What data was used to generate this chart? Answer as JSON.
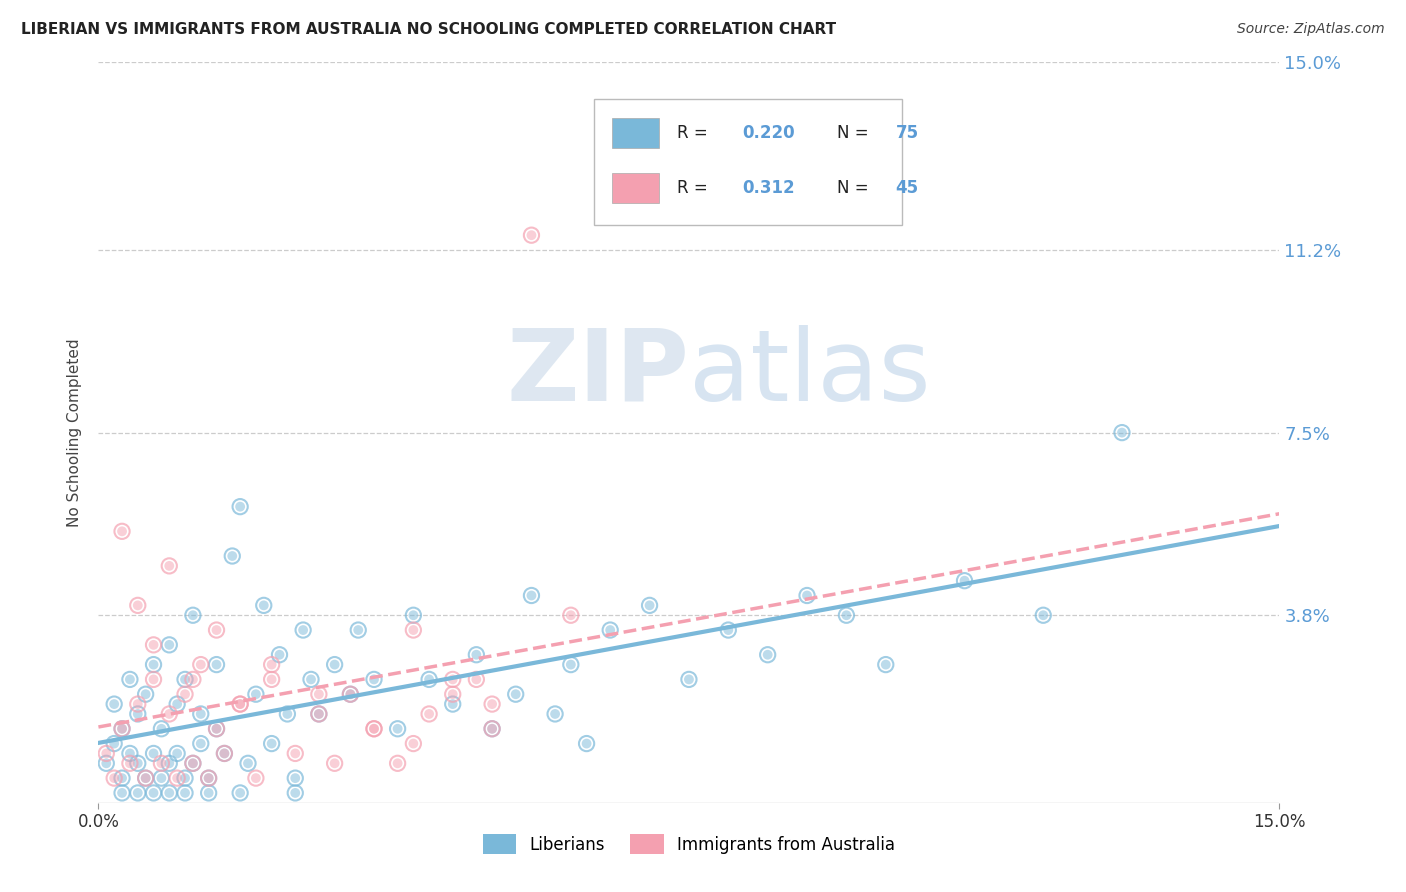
{
  "title": "LIBERIAN VS IMMIGRANTS FROM AUSTRALIA NO SCHOOLING COMPLETED CORRELATION CHART",
  "source": "Source: ZipAtlas.com",
  "ylabel": "No Schooling Completed",
  "xlim": [
    0.0,
    0.15
  ],
  "ylim": [
    0.0,
    0.15
  ],
  "xticklabels": [
    "0.0%",
    "15.0%"
  ],
  "ytick_labels": [
    "15.0%",
    "11.2%",
    "7.5%",
    "3.8%"
  ],
  "ytick_values": [
    0.15,
    0.112,
    0.075,
    0.038
  ],
  "liberian_color": "#7ab8d9",
  "australia_color": "#f4a0b0",
  "liberian_R": 0.22,
  "liberian_N": 75,
  "australia_R": 0.312,
  "australia_N": 45,
  "legend_label_1": "Liberians",
  "legend_label_2": "Immigrants from Australia",
  "watermark_zip": "ZIP",
  "watermark_atlas": "atlas",
  "label_color": "#5b9bd5",
  "liberian_x": [
    0.001,
    0.002,
    0.002,
    0.003,
    0.003,
    0.004,
    0.004,
    0.005,
    0.005,
    0.006,
    0.006,
    0.007,
    0.007,
    0.008,
    0.008,
    0.009,
    0.009,
    0.01,
    0.01,
    0.011,
    0.011,
    0.012,
    0.012,
    0.013,
    0.013,
    0.014,
    0.015,
    0.015,
    0.016,
    0.017,
    0.018,
    0.019,
    0.02,
    0.021,
    0.022,
    0.023,
    0.024,
    0.025,
    0.026,
    0.027,
    0.028,
    0.03,
    0.032,
    0.033,
    0.035,
    0.038,
    0.04,
    0.042,
    0.045,
    0.048,
    0.05,
    0.053,
    0.055,
    0.058,
    0.06,
    0.062,
    0.065,
    0.07,
    0.075,
    0.08,
    0.085,
    0.09,
    0.095,
    0.1,
    0.11,
    0.12,
    0.13,
    0.003,
    0.005,
    0.007,
    0.009,
    0.011,
    0.014,
    0.018,
    0.025
  ],
  "liberian_y": [
    0.008,
    0.012,
    0.02,
    0.005,
    0.015,
    0.01,
    0.025,
    0.008,
    0.018,
    0.005,
    0.022,
    0.01,
    0.028,
    0.005,
    0.015,
    0.008,
    0.032,
    0.01,
    0.02,
    0.005,
    0.025,
    0.008,
    0.038,
    0.012,
    0.018,
    0.005,
    0.015,
    0.028,
    0.01,
    0.05,
    0.06,
    0.008,
    0.022,
    0.04,
    0.012,
    0.03,
    0.018,
    0.005,
    0.035,
    0.025,
    0.018,
    0.028,
    0.022,
    0.035,
    0.025,
    0.015,
    0.038,
    0.025,
    0.02,
    0.03,
    0.015,
    0.022,
    0.042,
    0.018,
    0.028,
    0.012,
    0.035,
    0.04,
    0.025,
    0.035,
    0.03,
    0.042,
    0.038,
    0.028,
    0.045,
    0.038,
    0.075,
    0.002,
    0.002,
    0.002,
    0.002,
    0.002,
    0.002,
    0.002,
    0.002
  ],
  "australia_x": [
    0.001,
    0.002,
    0.003,
    0.004,
    0.005,
    0.006,
    0.007,
    0.008,
    0.009,
    0.01,
    0.011,
    0.012,
    0.013,
    0.014,
    0.015,
    0.016,
    0.018,
    0.02,
    0.022,
    0.025,
    0.028,
    0.03,
    0.032,
    0.035,
    0.038,
    0.04,
    0.042,
    0.045,
    0.048,
    0.05,
    0.003,
    0.005,
    0.007,
    0.009,
    0.012,
    0.015,
    0.018,
    0.022,
    0.028,
    0.035,
    0.04,
    0.045,
    0.05,
    0.055,
    0.06
  ],
  "australia_y": [
    0.01,
    0.005,
    0.015,
    0.008,
    0.02,
    0.005,
    0.025,
    0.008,
    0.018,
    0.005,
    0.022,
    0.008,
    0.028,
    0.005,
    0.015,
    0.01,
    0.02,
    0.005,
    0.025,
    0.01,
    0.018,
    0.008,
    0.022,
    0.015,
    0.008,
    0.012,
    0.018,
    0.022,
    0.025,
    0.015,
    0.055,
    0.04,
    0.032,
    0.048,
    0.025,
    0.035,
    0.02,
    0.028,
    0.022,
    0.015,
    0.035,
    0.025,
    0.02,
    0.115,
    0.038
  ]
}
